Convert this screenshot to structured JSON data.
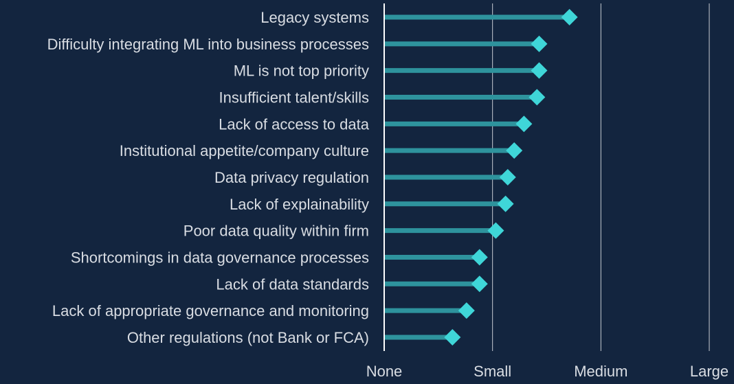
{
  "chart_data": {
    "type": "lollipop",
    "orientation": "horizontal",
    "title": "",
    "xlabel": "",
    "ylabel": "",
    "categories": [
      "Legacy systems",
      "Difficulty integrating ML into business processes",
      "ML is not top priority",
      "Insufficient talent/skills",
      "Lack of access to data",
      "Institutional appetite/company culture",
      "Data privacy regulation",
      "Lack of explainability",
      "Poor data quality within firm",
      "Shortcomings in data governance processes",
      "Lack of data standards",
      "Lack of appropriate governance and monitoring",
      "Other regulations (not Bank or FCA)"
    ],
    "values": [
      1.71,
      1.43,
      1.43,
      1.41,
      1.29,
      1.2,
      1.14,
      1.12,
      1.03,
      0.88,
      0.88,
      0.76,
      0.63
    ],
    "xlim": [
      0,
      3
    ],
    "xticks": [
      0,
      1,
      2,
      3
    ],
    "xtick_labels": [
      "None",
      "Small",
      "Medium",
      "Large"
    ],
    "grid": true,
    "colors": {
      "background": "#13253f",
      "stem": "#2e939d",
      "marker": "#3fd6d8",
      "grid": "#c8ccd2",
      "axis": "#ffffff",
      "text": "#d9dde3"
    }
  }
}
